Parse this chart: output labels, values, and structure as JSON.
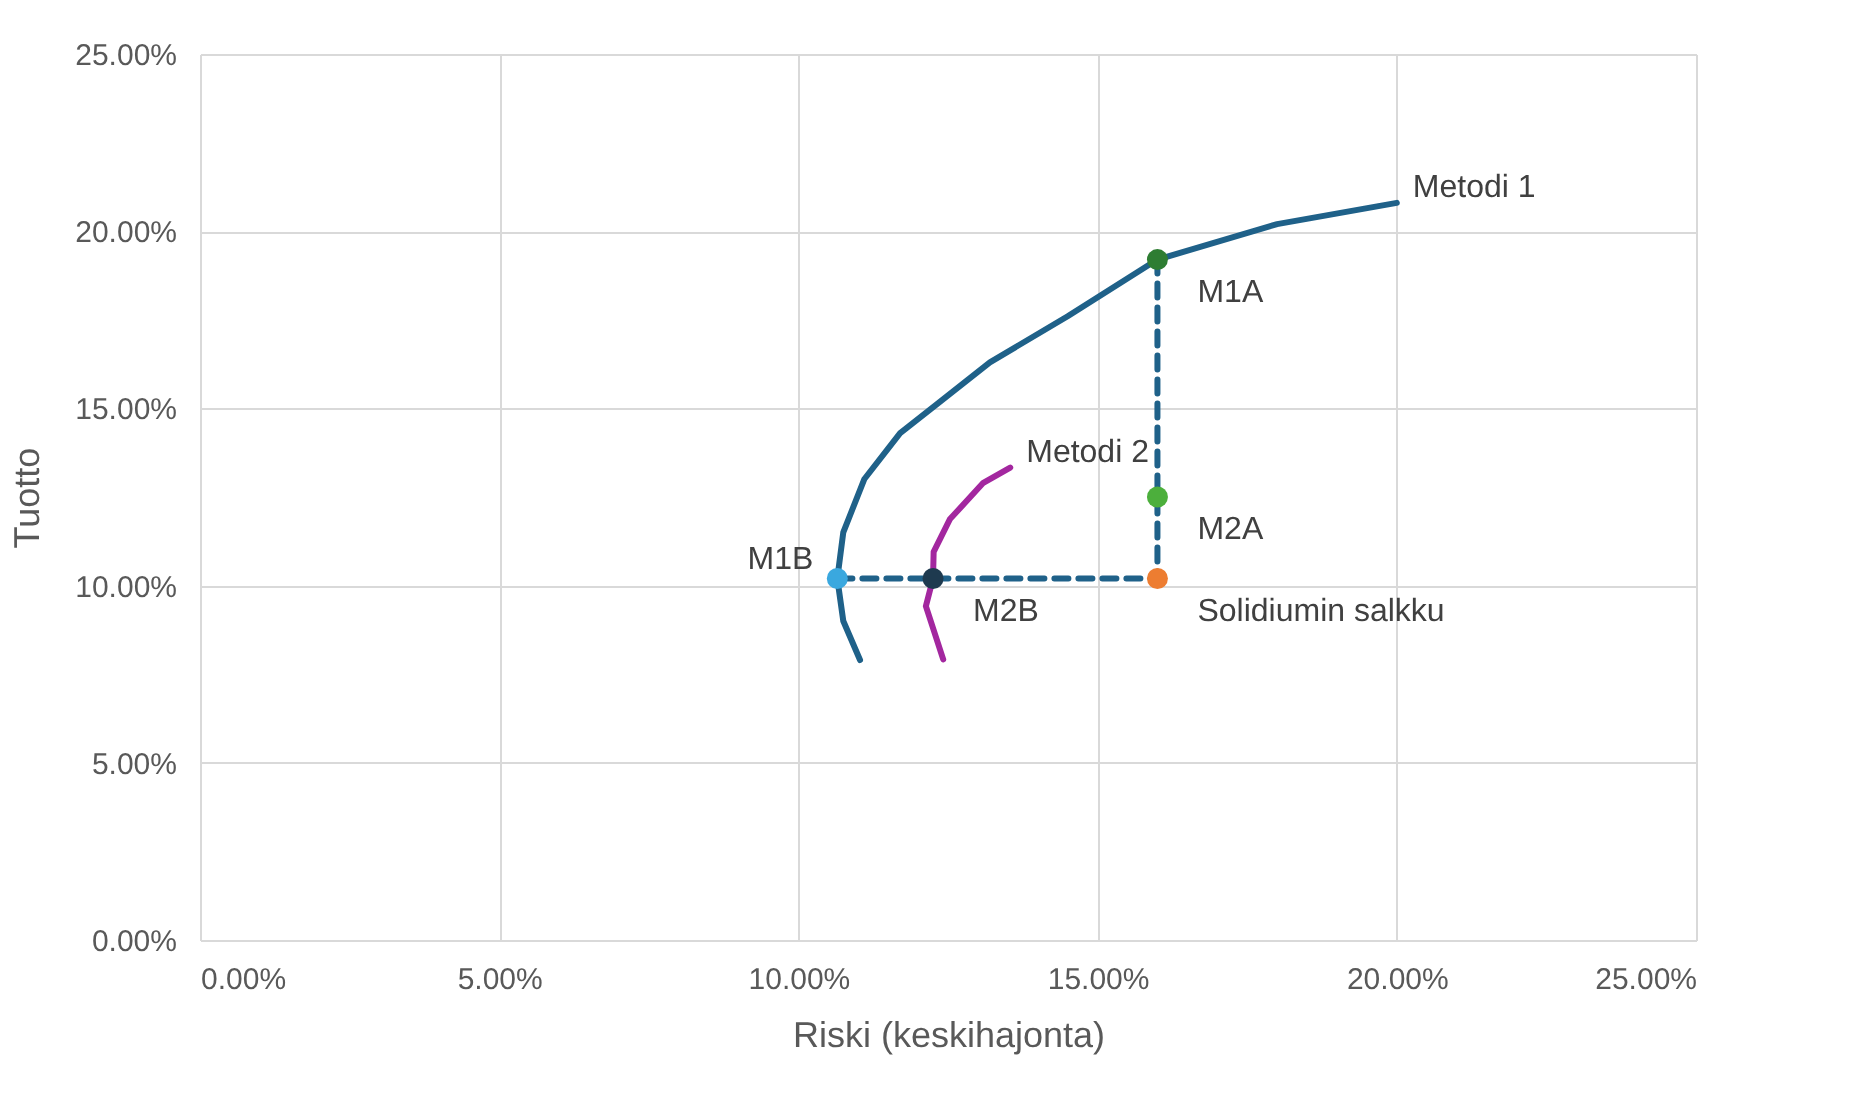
{
  "chart_data": {
    "type": "line",
    "xlabel": "Riski (keskihajonta)",
    "ylabel": "Tuotto",
    "xlim": [
      0,
      25
    ],
    "ylim": [
      0,
      25
    ],
    "xticks": [
      {
        "value": 0,
        "label": "0.00%"
      },
      {
        "value": 5,
        "label": "5.00%"
      },
      {
        "value": 10,
        "label": "10.00%"
      },
      {
        "value": 15,
        "label": "15.00%"
      },
      {
        "value": 20,
        "label": "20.00%"
      },
      {
        "value": 25,
        "label": "25.00%"
      }
    ],
    "yticks": [
      {
        "value": 0,
        "label": "0.00%"
      },
      {
        "value": 5,
        "label": "5.00%"
      },
      {
        "value": 10,
        "label": "10.00%"
      },
      {
        "value": 15,
        "label": "15.00%"
      },
      {
        "value": 20,
        "label": "20.00%"
      },
      {
        "value": 25,
        "label": "25.00%"
      }
    ],
    "grid": true,
    "series": [
      {
        "name": "Metodi 1",
        "type": "line",
        "color": "#1f6189",
        "x": [
          11.03,
          10.75,
          10.65,
          10.75,
          11.1,
          11.7,
          12.3,
          13.2,
          14.5,
          16.0,
          18.0,
          20.0
        ],
        "values": [
          7.9,
          9.0,
          10.2,
          11.5,
          13.0,
          14.3,
          15.1,
          16.3,
          17.6,
          19.2,
          20.2,
          20.8
        ]
      },
      {
        "name": "Metodi 2",
        "type": "line",
        "color": "#a3279f",
        "x": [
          12.42,
          12.13,
          12.25,
          12.26,
          12.53,
          13.09,
          13.54
        ],
        "values": [
          7.92,
          9.42,
          10.2,
          10.95,
          11.87,
          12.9,
          13.33
        ]
      },
      {
        "type": "line",
        "line_style": "dashed",
        "color": "#1f6189",
        "x": [
          16.0,
          16.0,
          10.65
        ],
        "values": [
          19.2,
          10.2,
          10.2
        ]
      },
      {
        "name": "M1A",
        "type": "scatter",
        "color": "#2e7d32",
        "x": [
          16.0
        ],
        "values": [
          19.2
        ]
      },
      {
        "name": "M2A",
        "type": "scatter",
        "color": "#4caf3c",
        "x": [
          16.0
        ],
        "values": [
          12.5
        ]
      },
      {
        "name": "Solidiumin salkku",
        "type": "scatter",
        "color": "#ed7d31",
        "x": [
          16.0
        ],
        "values": [
          10.2
        ]
      },
      {
        "name": "M1B",
        "type": "scatter",
        "color": "#3aa8df",
        "x": [
          10.65
        ],
        "values": [
          10.2
        ]
      },
      {
        "name": "M2B",
        "type": "scatter",
        "color": "#1e3a4f",
        "x": [
          12.25
        ],
        "values": [
          10.2
        ]
      }
    ]
  }
}
